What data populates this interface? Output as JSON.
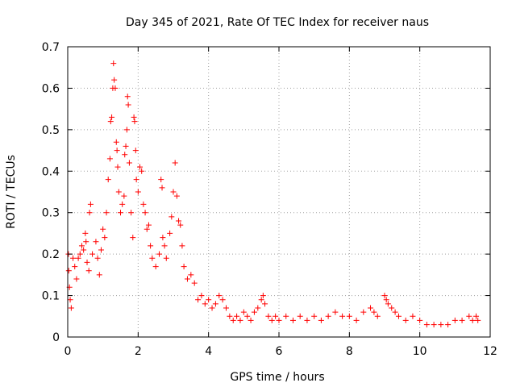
{
  "chart_data": {
    "type": "scatter",
    "title": "Day 345 of 2021, Rate Of TEC Index for receiver naus",
    "xlabel": "GPS time / hours",
    "ylabel": "ROTI / TECUs",
    "xlim": [
      0,
      12
    ],
    "ylim": [
      0,
      0.7
    ],
    "xticks": [
      0,
      2,
      4,
      6,
      8,
      10,
      12
    ],
    "yticks": [
      0,
      0.1,
      0.2,
      0.3,
      0.4,
      0.5,
      0.6,
      0.7
    ],
    "xtick_labels": [
      "0",
      "2",
      "4",
      "6",
      "8",
      "10",
      "12"
    ],
    "ytick_labels": [
      "0",
      "0.1",
      "0.2",
      "0.3",
      "0.4",
      "0.5",
      "0.6",
      "0.7"
    ],
    "grid": true,
    "marker": "+",
    "color": "#ff0000",
    "series": [
      {
        "name": "ROTI",
        "points": [
          [
            0.02,
            0.2
          ],
          [
            0.03,
            0.16
          ],
          [
            0.05,
            0.12
          ],
          [
            0.07,
            0.09
          ],
          [
            0.1,
            0.07
          ],
          [
            0.15,
            0.19
          ],
          [
            0.2,
            0.17
          ],
          [
            0.25,
            0.14
          ],
          [
            0.3,
            0.19
          ],
          [
            0.35,
            0.2
          ],
          [
            0.4,
            0.22
          ],
          [
            0.45,
            0.21
          ],
          [
            0.5,
            0.25
          ],
          [
            0.52,
            0.23
          ],
          [
            0.55,
            0.18
          ],
          [
            0.6,
            0.16
          ],
          [
            0.62,
            0.3
          ],
          [
            0.65,
            0.32
          ],
          [
            0.7,
            0.2
          ],
          [
            0.8,
            0.23
          ],
          [
            0.85,
            0.19
          ],
          [
            0.9,
            0.15
          ],
          [
            0.95,
            0.21
          ],
          [
            1.0,
            0.26
          ],
          [
            1.05,
            0.24
          ],
          [
            1.1,
            0.3
          ],
          [
            1.15,
            0.38
          ],
          [
            1.2,
            0.43
          ],
          [
            1.22,
            0.52
          ],
          [
            1.25,
            0.53
          ],
          [
            1.28,
            0.6
          ],
          [
            1.3,
            0.66
          ],
          [
            1.32,
            0.62
          ],
          [
            1.35,
            0.6
          ],
          [
            1.38,
            0.47
          ],
          [
            1.4,
            0.45
          ],
          [
            1.42,
            0.41
          ],
          [
            1.45,
            0.35
          ],
          [
            1.5,
            0.3
          ],
          [
            1.55,
            0.32
          ],
          [
            1.6,
            0.34
          ],
          [
            1.62,
            0.44
          ],
          [
            1.65,
            0.46
          ],
          [
            1.68,
            0.5
          ],
          [
            1.7,
            0.58
          ],
          [
            1.72,
            0.56
          ],
          [
            1.75,
            0.42
          ],
          [
            1.8,
            0.3
          ],
          [
            1.85,
            0.24
          ],
          [
            1.88,
            0.53
          ],
          [
            1.9,
            0.52
          ],
          [
            1.93,
            0.45
          ],
          [
            1.95,
            0.38
          ],
          [
            2.0,
            0.35
          ],
          [
            2.05,
            0.41
          ],
          [
            2.1,
            0.4
          ],
          [
            2.15,
            0.32
          ],
          [
            2.2,
            0.3
          ],
          [
            2.25,
            0.26
          ],
          [
            2.3,
            0.27
          ],
          [
            2.35,
            0.22
          ],
          [
            2.4,
            0.19
          ],
          [
            2.5,
            0.17
          ],
          [
            2.6,
            0.2
          ],
          [
            2.65,
            0.38
          ],
          [
            2.68,
            0.36
          ],
          [
            2.7,
            0.24
          ],
          [
            2.75,
            0.22
          ],
          [
            2.8,
            0.19
          ],
          [
            2.9,
            0.25
          ],
          [
            2.95,
            0.29
          ],
          [
            3.0,
            0.35
          ],
          [
            3.05,
            0.42
          ],
          [
            3.1,
            0.34
          ],
          [
            3.15,
            0.28
          ],
          [
            3.2,
            0.27
          ],
          [
            3.25,
            0.22
          ],
          [
            3.3,
            0.17
          ],
          [
            3.4,
            0.14
          ],
          [
            3.5,
            0.15
          ],
          [
            3.6,
            0.13
          ],
          [
            3.7,
            0.09
          ],
          [
            3.8,
            0.1
          ],
          [
            3.9,
            0.08
          ],
          [
            4.0,
            0.09
          ],
          [
            4.1,
            0.07
          ],
          [
            4.2,
            0.08
          ],
          [
            4.3,
            0.1
          ],
          [
            4.4,
            0.09
          ],
          [
            4.5,
            0.07
          ],
          [
            4.6,
            0.05
          ],
          [
            4.7,
            0.04
          ],
          [
            4.8,
            0.05
          ],
          [
            4.9,
            0.04
          ],
          [
            5.0,
            0.06
          ],
          [
            5.1,
            0.05
          ],
          [
            5.2,
            0.04
          ],
          [
            5.3,
            0.06
          ],
          [
            5.4,
            0.07
          ],
          [
            5.5,
            0.09
          ],
          [
            5.55,
            0.1
          ],
          [
            5.6,
            0.08
          ],
          [
            5.7,
            0.05
          ],
          [
            5.8,
            0.04
          ],
          [
            5.9,
            0.05
          ],
          [
            6.0,
            0.04
          ],
          [
            6.2,
            0.05
          ],
          [
            6.4,
            0.04
          ],
          [
            6.6,
            0.05
          ],
          [
            6.8,
            0.04
          ],
          [
            7.0,
            0.05
          ],
          [
            7.2,
            0.04
          ],
          [
            7.4,
            0.05
          ],
          [
            7.6,
            0.06
          ],
          [
            7.8,
            0.05
          ],
          [
            8.0,
            0.05
          ],
          [
            8.2,
            0.04
          ],
          [
            8.4,
            0.06
          ],
          [
            8.6,
            0.07
          ],
          [
            8.7,
            0.06
          ],
          [
            8.8,
            0.05
          ],
          [
            9.0,
            0.1
          ],
          [
            9.05,
            0.09
          ],
          [
            9.1,
            0.08
          ],
          [
            9.2,
            0.07
          ],
          [
            9.3,
            0.06
          ],
          [
            9.4,
            0.05
          ],
          [
            9.6,
            0.04
          ],
          [
            9.8,
            0.05
          ],
          [
            10.0,
            0.04
          ],
          [
            10.2,
            0.03
          ],
          [
            10.4,
            0.03
          ],
          [
            10.6,
            0.03
          ],
          [
            10.8,
            0.03
          ],
          [
            11.0,
            0.04
          ],
          [
            11.2,
            0.04
          ],
          [
            11.4,
            0.05
          ],
          [
            11.5,
            0.04
          ],
          [
            11.6,
            0.05
          ],
          [
            11.65,
            0.04
          ]
        ]
      }
    ]
  }
}
